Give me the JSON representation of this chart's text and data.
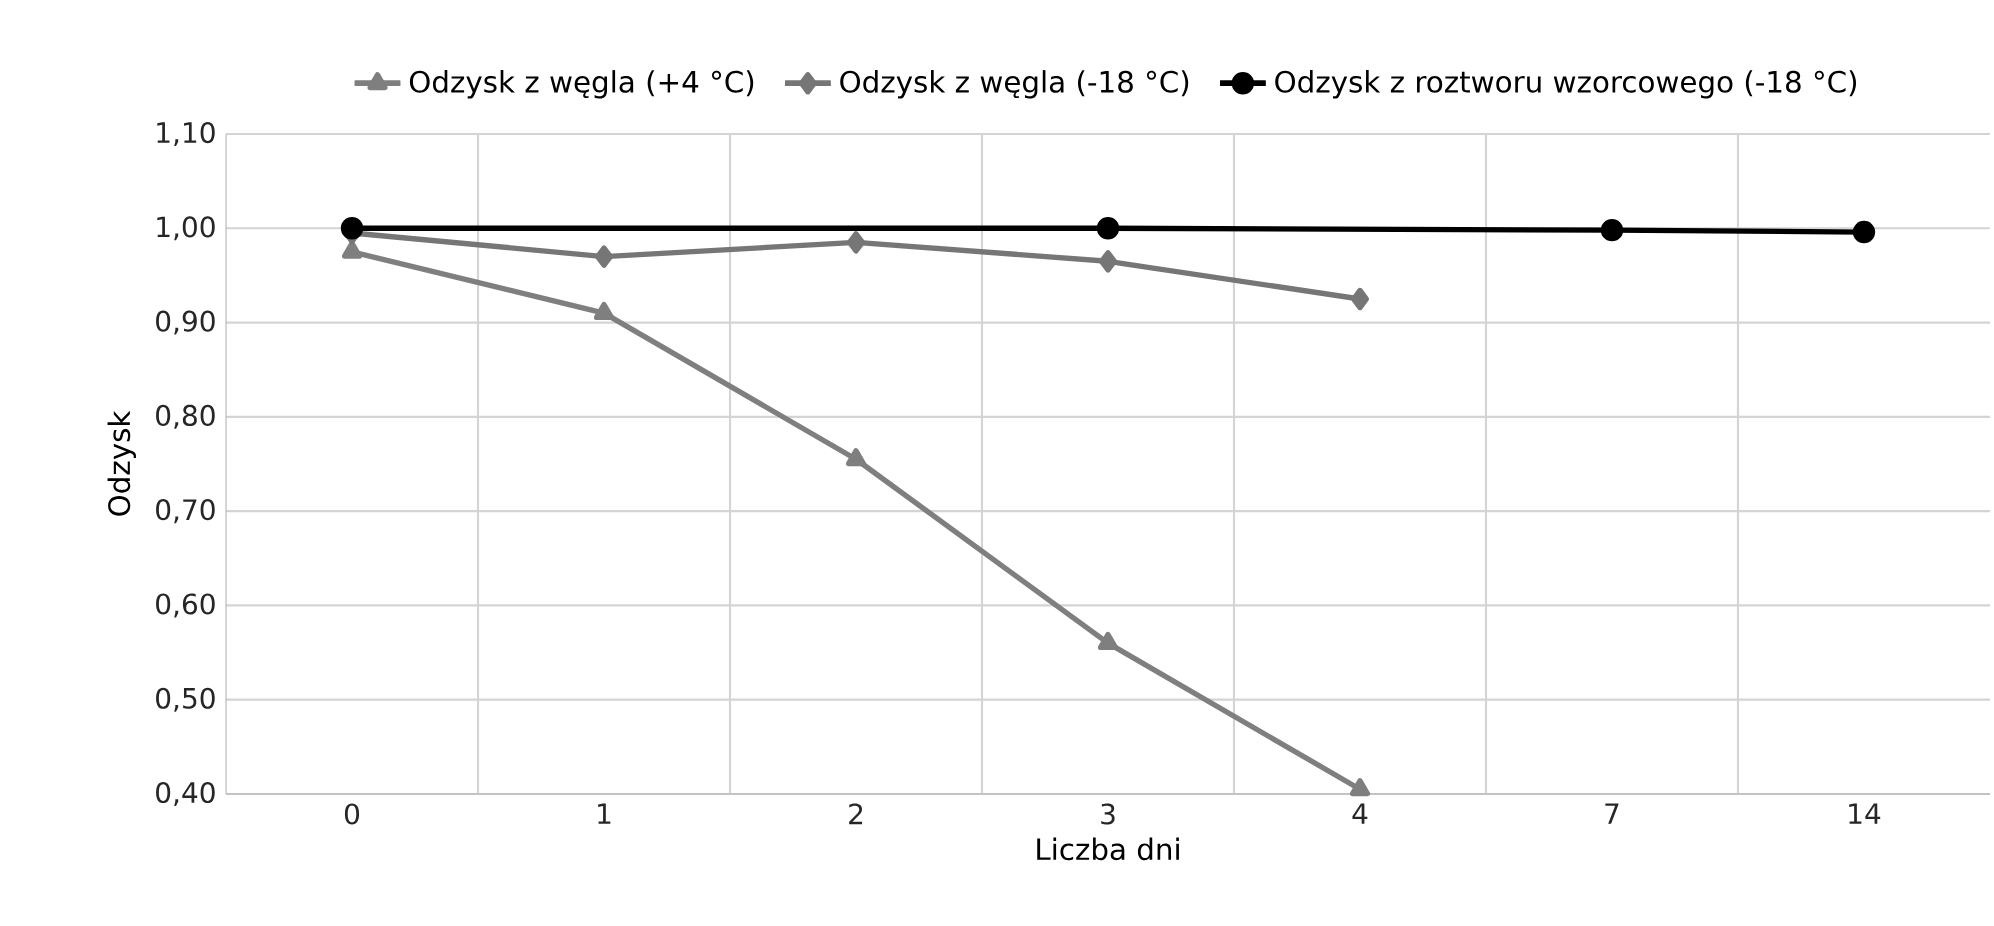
{
  "chart_data": {
    "type": "line",
    "xlabel": "Liczba dni",
    "ylabel": "Odzysk",
    "categories": [
      "0",
      "1",
      "2",
      "3",
      "4",
      "7",
      "14"
    ],
    "ylim": [
      0.4,
      1.1
    ],
    "yticks": [
      {
        "value": 0.4,
        "label": "0,40"
      },
      {
        "value": 0.5,
        "label": "0,50"
      },
      {
        "value": 0.6,
        "label": "0,60"
      },
      {
        "value": 0.7,
        "label": "0,70"
      },
      {
        "value": 0.8,
        "label": "0,80"
      },
      {
        "value": 0.9,
        "label": "0,90"
      },
      {
        "value": 1.0,
        "label": "1,00"
      },
      {
        "value": 1.1,
        "label": "1,10"
      }
    ],
    "grid": true,
    "legend": "top",
    "series": [
      {
        "name": "Odzysk z węgla (+4 °C)",
        "color": "#7f7f7f",
        "marker": "triangle",
        "values": [
          0.975,
          0.91,
          0.755,
          0.56,
          0.405,
          null,
          null
        ]
      },
      {
        "name": "Odzysk z węgla (-18 °C)",
        "color": "#767676",
        "marker": "diamond",
        "values": [
          0.995,
          0.97,
          0.985,
          0.965,
          0.925,
          null,
          null
        ]
      },
      {
        "name": "Odzysk z roztworu wzorcowego (-18 °C)",
        "color": "#000000",
        "marker": "circle",
        "values": [
          1.0,
          null,
          null,
          1.0,
          null,
          0.998,
          0.996
        ]
      }
    ]
  }
}
